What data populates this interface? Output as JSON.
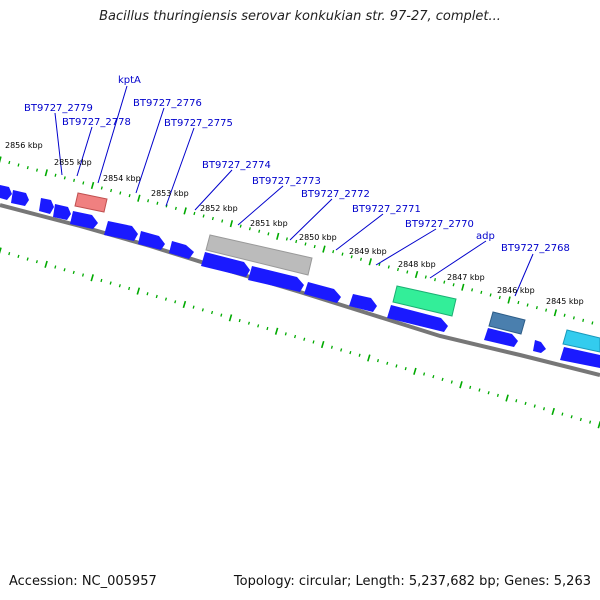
{
  "title": "Bacillus thuringiensis serovar konkukian str. 97-27, complet...",
  "footer": {
    "accession": "Accession: NC_005957",
    "summary": "Topology: circular; Length: 5,237,682 bp; Genes: 5,263"
  },
  "colors": {
    "backbone": "#777777",
    "gene_blue": "#1a1aff",
    "tick_green": "#00aa00",
    "label_blue": "#0000cc",
    "highlight_red": "#f08080",
    "highlight_gray": "#bbbbbb",
    "highlight_green": "#33ee99",
    "highlight_teal": "#4a7fae",
    "highlight_cyan": "#33ccee"
  },
  "kbp_labels": [
    "2856 kbp",
    "2855 kbp",
    "2854 kbp",
    "2853 kbp",
    "2852 kbp",
    "2851 kbp",
    "2850 kbp",
    "2849 kbp",
    "2848 kbp",
    "2847 kbp",
    "2846 kbp",
    "2845 kbp"
  ],
  "gene_labels": [
    "kptA",
    "BT9727_2779",
    "BT9727_2778",
    "BT9727_2776",
    "BT9727_2775",
    "BT9727_2774",
    "BT9727_2773",
    "BT9727_2772",
    "BT9727_2771",
    "BT9727_2770",
    "adp",
    "BT9727_2768"
  ]
}
